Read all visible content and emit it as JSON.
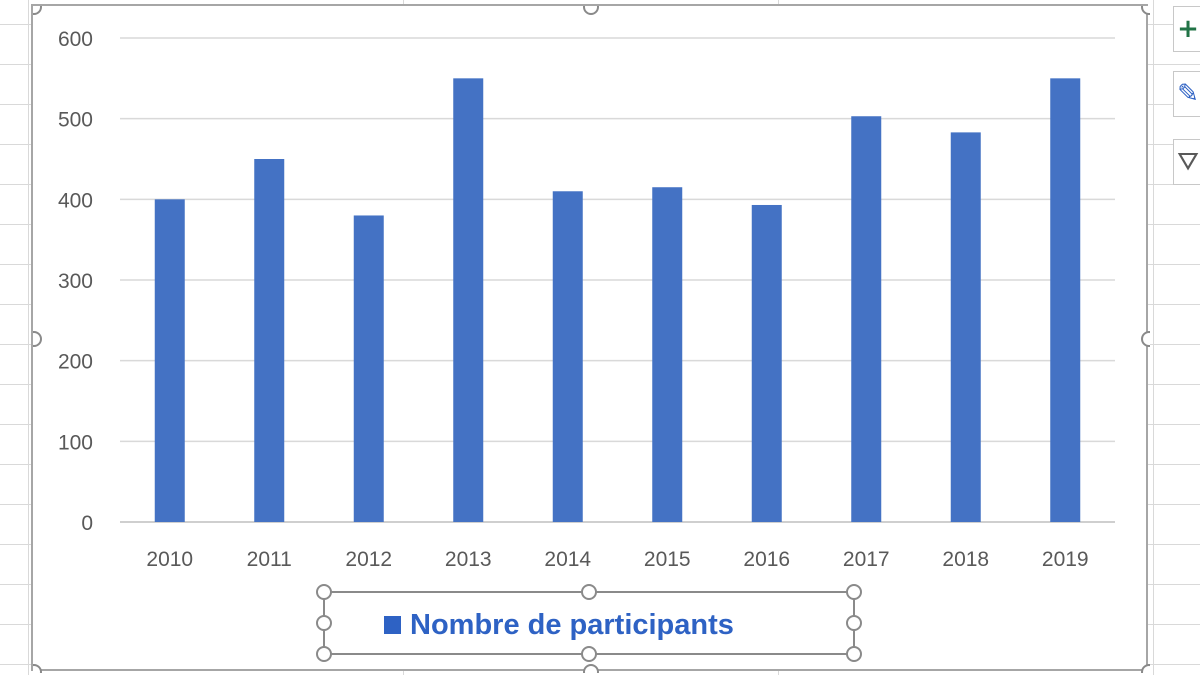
{
  "chart_data": {
    "type": "bar",
    "categories": [
      "2010",
      "2011",
      "2012",
      "2013",
      "2014",
      "2015",
      "2016",
      "2017",
      "2018",
      "2019"
    ],
    "series": [
      {
        "name": "Nombre de participants",
        "values": [
          400,
          450,
          380,
          550,
          410,
          415,
          393,
          503,
          483,
          550
        ]
      }
    ],
    "ylim": [
      0,
      600
    ],
    "yticks": [
      "0",
      "100",
      "200",
      "300",
      "400",
      "500",
      "600"
    ],
    "grid": true,
    "legend_position": "bottom",
    "bar_color": "#4472c4",
    "legend_color": "#2e62c4"
  },
  "side_buttons": [
    {
      "icon": "plus-icon",
      "glyph": "+",
      "color": "#217346"
    },
    {
      "icon": "brush-icon",
      "glyph": "✎",
      "color": "#2e62c4"
    },
    {
      "icon": "filter-icon",
      "glyph": "⛛",
      "color": "#595959"
    }
  ]
}
